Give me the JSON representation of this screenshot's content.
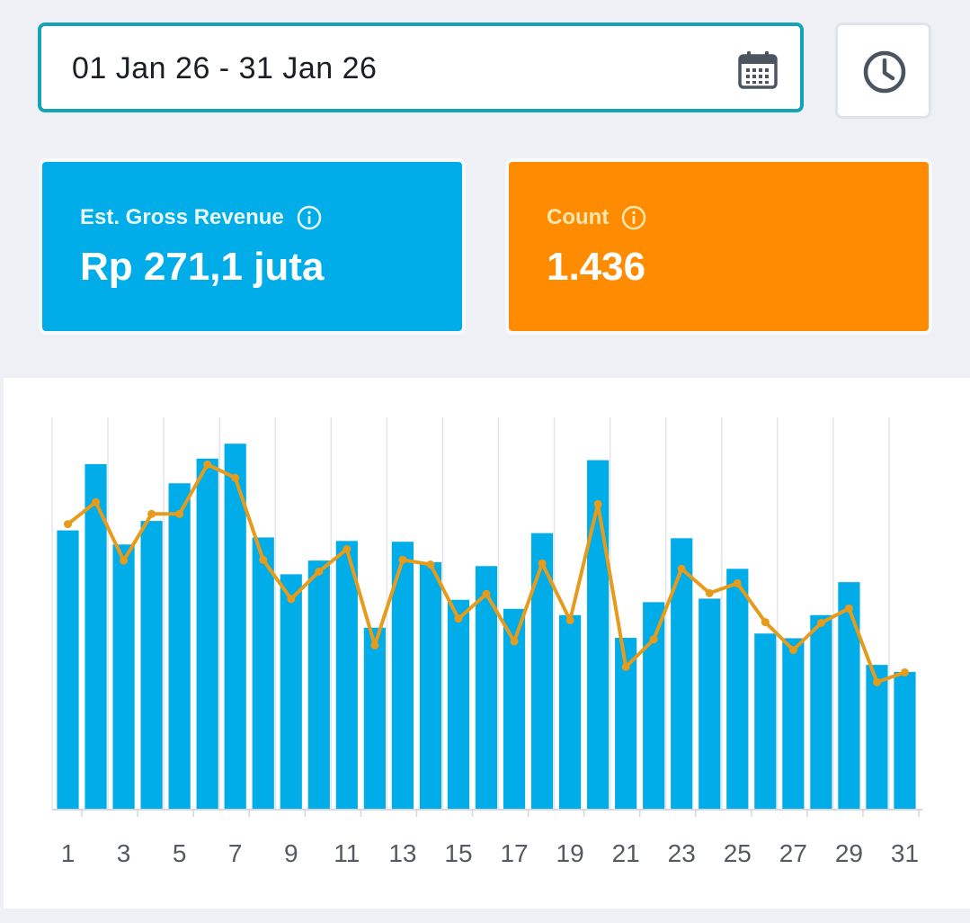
{
  "date_range": {
    "value": "01 Jan 26 - 31 Jan 26"
  },
  "cards": {
    "revenue": {
      "label": "Est. Gross Revenue",
      "value": "Rp 271,1 juta"
    },
    "count": {
      "label": "Count",
      "value": "1.436"
    }
  },
  "colors": {
    "bar": "#01ade9",
    "line": "#e69b1a",
    "revenue_card": "#01ade9",
    "count_card": "#ff8b00",
    "accent_border": "#16a3b8"
  },
  "chart_data": {
    "type": "bar",
    "title": "",
    "xlabel": "",
    "ylabel": "",
    "categories": [
      "1",
      "2",
      "3",
      "4",
      "5",
      "6",
      "7",
      "8",
      "9",
      "10",
      "11",
      "12",
      "13",
      "14",
      "15",
      "16",
      "17",
      "18",
      "19",
      "20",
      "21",
      "22",
      "23",
      "24",
      "25",
      "26",
      "27",
      "28",
      "29",
      "30",
      "31"
    ],
    "x_tick_labels": [
      "1",
      "3",
      "5",
      "7",
      "9",
      "11",
      "13",
      "15",
      "17",
      "19",
      "21",
      "23",
      "25",
      "27",
      "29",
      "31"
    ],
    "ylim": [
      0,
      100
    ],
    "series": [
      {
        "type": "bar",
        "values": [
          71.2,
          88.1,
          67.6,
          73.6,
          83.2,
          89.5,
          93.3,
          69.4,
          60.0,
          63.5,
          68.5,
          46.4,
          68.3,
          63.1,
          53.5,
          62.1,
          51.2,
          70.5,
          49.6,
          89.1,
          43.8,
          52.9,
          69.2,
          53.8,
          61.4,
          44.9,
          43.7,
          49.6,
          58.0,
          36.9,
          35.1
        ]
      },
      {
        "type": "line",
        "values": [
          72.8,
          78.4,
          63.5,
          75.4,
          75.4,
          88.0,
          84.6,
          63.7,
          53.7,
          60.7,
          66.4,
          41.9,
          63.7,
          62.5,
          48.7,
          55.0,
          42.9,
          62.8,
          48.3,
          77.9,
          36.4,
          43.4,
          61.4,
          55.2,
          57.7,
          47.8,
          40.7,
          47.6,
          51.3,
          32.5,
          35.0
        ]
      }
    ],
    "grid": {
      "vertical": true,
      "horizontal": false
    },
    "legend": "none"
  }
}
